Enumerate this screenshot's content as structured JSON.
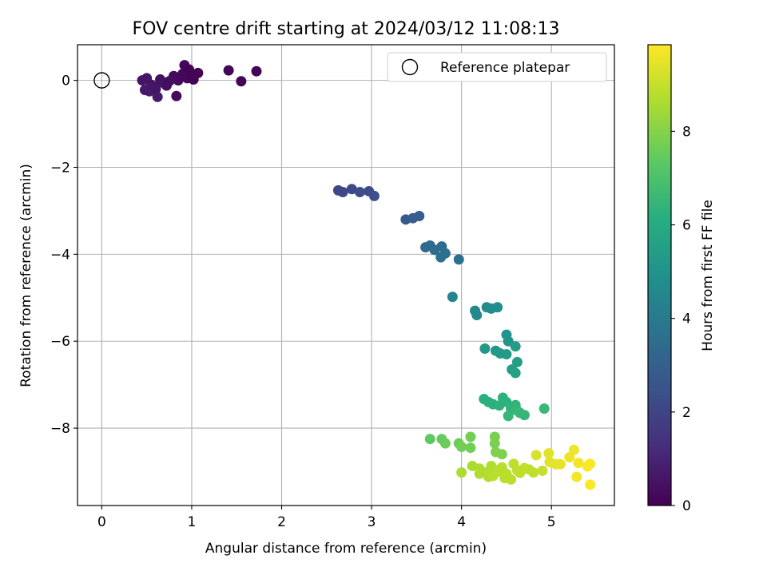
{
  "chart_data": {
    "type": "scatter",
    "title": "FOV centre drift starting at 2024/03/12 11:08:13",
    "xlabel": "Angular distance from reference (arcmin)",
    "ylabel": "Rotation from reference (arcmin)",
    "xlim": [
      -0.27,
      5.7
    ],
    "ylim": [
      -9.78,
      0.82
    ],
    "xticks": [
      0,
      1,
      2,
      3,
      4,
      5
    ],
    "yticks": [
      0,
      -2,
      -4,
      -6,
      -8
    ],
    "xtick_labels": [
      "0",
      "1",
      "2",
      "3",
      "4",
      "5"
    ],
    "ytick_labels": [
      "0",
      "−2",
      "−4",
      "−6",
      "−8"
    ],
    "grid": true,
    "legend": {
      "position": "upper-right",
      "entries": [
        "Reference platepar"
      ]
    },
    "reference_point": {
      "x": 0,
      "y": 0,
      "marker": "open-circle"
    },
    "colormap": "viridis",
    "colorbar": {
      "label": "Hours from first FF file",
      "min": 0,
      "max": 9.85,
      "ticks": [
        0,
        2,
        4,
        6,
        8
      ],
      "tick_labels": [
        "0",
        "2",
        "4",
        "6",
        "8"
      ]
    },
    "points": [
      {
        "x": 0.45,
        "y": 0.0,
        "h": 0.6
      },
      {
        "x": 0.5,
        "y": 0.05,
        "h": 0.6
      },
      {
        "x": 0.55,
        "y": -0.1,
        "h": 0.5
      },
      {
        "x": 0.6,
        "y": -0.2,
        "h": 0.5
      },
      {
        "x": 0.65,
        "y": 0.02,
        "h": 0.4
      },
      {
        "x": 0.68,
        "y": -0.05,
        "h": 0.5
      },
      {
        "x": 0.72,
        "y": -0.12,
        "h": 0.4
      },
      {
        "x": 0.8,
        "y": 0.1,
        "h": 0.3
      },
      {
        "x": 0.85,
        "y": 0.0,
        "h": 0.3
      },
      {
        "x": 0.9,
        "y": 0.15,
        "h": 0.2
      },
      {
        "x": 0.92,
        "y": 0.35,
        "h": 0.2
      },
      {
        "x": 0.95,
        "y": 0.05,
        "h": 0.2
      },
      {
        "x": 0.97,
        "y": 0.25,
        "h": 0.1
      },
      {
        "x": 1.0,
        "y": 0.12,
        "h": 0.1
      },
      {
        "x": 1.02,
        "y": 0.02,
        "h": 0.1
      },
      {
        "x": 1.07,
        "y": 0.17,
        "h": 0.1
      },
      {
        "x": 0.48,
        "y": -0.22,
        "h": 0.7
      },
      {
        "x": 0.53,
        "y": -0.25,
        "h": 0.7
      },
      {
        "x": 0.62,
        "y": -0.38,
        "h": 0.7
      },
      {
        "x": 0.75,
        "y": -0.02,
        "h": 0.4
      },
      {
        "x": 0.83,
        "y": -0.36,
        "h": 0.3
      },
      {
        "x": 0.58,
        "y": -0.15,
        "h": 0.6
      },
      {
        "x": 0.88,
        "y": 0.08,
        "h": 0.2
      },
      {
        "x": 1.41,
        "y": 0.23,
        "h": 0.1
      },
      {
        "x": 1.55,
        "y": -0.02,
        "h": 0.1
      },
      {
        "x": 1.72,
        "y": 0.21,
        "h": 0.1
      },
      {
        "x": 2.63,
        "y": -2.53,
        "h": 2.1
      },
      {
        "x": 2.68,
        "y": -2.57,
        "h": 2.1
      },
      {
        "x": 2.78,
        "y": -2.5,
        "h": 2.2
      },
      {
        "x": 2.87,
        "y": -2.57,
        "h": 2.3
      },
      {
        "x": 2.97,
        "y": -2.55,
        "h": 2.3
      },
      {
        "x": 3.03,
        "y": -2.66,
        "h": 2.4
      },
      {
        "x": 3.38,
        "y": -3.2,
        "h": 2.8
      },
      {
        "x": 3.46,
        "y": -3.17,
        "h": 2.9
      },
      {
        "x": 3.53,
        "y": -3.12,
        "h": 2.9
      },
      {
        "x": 3.6,
        "y": -3.84,
        "h": 3.4
      },
      {
        "x": 3.65,
        "y": -3.8,
        "h": 3.4
      },
      {
        "x": 3.7,
        "y": -3.9,
        "h": 3.5
      },
      {
        "x": 3.78,
        "y": -3.82,
        "h": 3.5
      },
      {
        "x": 3.77,
        "y": -4.07,
        "h": 3.6
      },
      {
        "x": 3.82,
        "y": -3.98,
        "h": 3.6
      },
      {
        "x": 3.97,
        "y": -4.12,
        "h": 3.6
      },
      {
        "x": 3.9,
        "y": -4.98,
        "h": 4.4
      },
      {
        "x": 4.15,
        "y": -5.3,
        "h": 4.6
      },
      {
        "x": 4.17,
        "y": -5.4,
        "h": 4.6
      },
      {
        "x": 4.28,
        "y": -5.22,
        "h": 4.7
      },
      {
        "x": 4.33,
        "y": -5.25,
        "h": 4.8
      },
      {
        "x": 4.4,
        "y": -5.22,
        "h": 4.8
      },
      {
        "x": 4.5,
        "y": -5.85,
        "h": 5.1
      },
      {
        "x": 4.52,
        "y": -6.0,
        "h": 5.1
      },
      {
        "x": 4.26,
        "y": -6.17,
        "h": 5.2
      },
      {
        "x": 4.38,
        "y": -6.22,
        "h": 5.2
      },
      {
        "x": 4.43,
        "y": -6.28,
        "h": 5.3
      },
      {
        "x": 4.5,
        "y": -6.3,
        "h": 5.3
      },
      {
        "x": 4.6,
        "y": -6.12,
        "h": 5.4
      },
      {
        "x": 4.62,
        "y": -6.48,
        "h": 5.5
      },
      {
        "x": 4.56,
        "y": -6.65,
        "h": 5.5
      },
      {
        "x": 4.6,
        "y": -6.73,
        "h": 5.6
      },
      {
        "x": 4.25,
        "y": -7.33,
        "h": 6.2
      },
      {
        "x": 4.3,
        "y": -7.4,
        "h": 6.2
      },
      {
        "x": 4.35,
        "y": -7.45,
        "h": 6.2
      },
      {
        "x": 4.42,
        "y": -7.48,
        "h": 6.3
      },
      {
        "x": 4.46,
        "y": -7.3,
        "h": 6.3
      },
      {
        "x": 4.5,
        "y": -7.4,
        "h": 6.3
      },
      {
        "x": 4.55,
        "y": -7.55,
        "h": 6.4
      },
      {
        "x": 4.6,
        "y": -7.47,
        "h": 6.4
      },
      {
        "x": 4.62,
        "y": -7.6,
        "h": 6.5
      },
      {
        "x": 4.65,
        "y": -7.65,
        "h": 6.5
      },
      {
        "x": 4.52,
        "y": -7.72,
        "h": 6.5
      },
      {
        "x": 4.7,
        "y": -7.7,
        "h": 6.5
      },
      {
        "x": 4.92,
        "y": -7.55,
        "h": 6.6
      },
      {
        "x": 3.65,
        "y": -8.25,
        "h": 7.4
      },
      {
        "x": 3.78,
        "y": -8.25,
        "h": 7.5
      },
      {
        "x": 3.82,
        "y": -8.35,
        "h": 7.6
      },
      {
        "x": 3.97,
        "y": -8.35,
        "h": 7.6
      },
      {
        "x": 4.0,
        "y": -8.43,
        "h": 7.7
      },
      {
        "x": 4.1,
        "y": -8.2,
        "h": 7.7
      },
      {
        "x": 4.1,
        "y": -8.45,
        "h": 7.7
      },
      {
        "x": 4.37,
        "y": -8.2,
        "h": 7.8
      },
      {
        "x": 4.37,
        "y": -8.35,
        "h": 7.8
      },
      {
        "x": 4.38,
        "y": -8.55,
        "h": 7.9
      },
      {
        "x": 4.45,
        "y": -8.6,
        "h": 7.9
      },
      {
        "x": 4.0,
        "y": -9.02,
        "h": 8.6
      },
      {
        "x": 4.12,
        "y": -8.87,
        "h": 8.6
      },
      {
        "x": 4.2,
        "y": -8.93,
        "h": 8.6
      },
      {
        "x": 4.27,
        "y": -9.02,
        "h": 8.7
      },
      {
        "x": 4.3,
        "y": -9.12,
        "h": 8.7
      },
      {
        "x": 4.33,
        "y": -8.87,
        "h": 8.7
      },
      {
        "x": 4.4,
        "y": -9.0,
        "h": 8.8
      },
      {
        "x": 4.45,
        "y": -8.9,
        "h": 8.8
      },
      {
        "x": 4.5,
        "y": -9.05,
        "h": 8.8
      },
      {
        "x": 4.55,
        "y": -9.18,
        "h": 8.8
      },
      {
        "x": 4.58,
        "y": -8.82,
        "h": 8.9
      },
      {
        "x": 4.62,
        "y": -8.97,
        "h": 8.9
      },
      {
        "x": 4.7,
        "y": -8.92,
        "h": 8.9
      },
      {
        "x": 4.8,
        "y": -9.02,
        "h": 8.9
      },
      {
        "x": 4.9,
        "y": -8.98,
        "h": 9.0
      },
      {
        "x": 4.2,
        "y": -9.05,
        "h": 8.7
      },
      {
        "x": 4.35,
        "y": -9.1,
        "h": 8.8
      },
      {
        "x": 4.48,
        "y": -9.15,
        "h": 8.8
      },
      {
        "x": 4.65,
        "y": -9.03,
        "h": 8.9
      },
      {
        "x": 4.75,
        "y": -8.95,
        "h": 8.9
      },
      {
        "x": 4.42,
        "y": -8.95,
        "h": 8.8
      },
      {
        "x": 4.83,
        "y": -8.62,
        "h": 9.3
      },
      {
        "x": 4.97,
        "y": -8.58,
        "h": 9.4
      },
      {
        "x": 4.98,
        "y": -8.78,
        "h": 9.4
      },
      {
        "x": 5.05,
        "y": -8.83,
        "h": 9.5
      },
      {
        "x": 5.1,
        "y": -8.83,
        "h": 9.5
      },
      {
        "x": 5.2,
        "y": -8.67,
        "h": 9.6
      },
      {
        "x": 5.25,
        "y": -8.5,
        "h": 9.6
      },
      {
        "x": 5.3,
        "y": -8.8,
        "h": 9.7
      },
      {
        "x": 5.28,
        "y": -9.12,
        "h": 9.7
      },
      {
        "x": 5.4,
        "y": -8.88,
        "h": 9.8
      },
      {
        "x": 5.43,
        "y": -8.82,
        "h": 9.8
      },
      {
        "x": 5.43,
        "y": -9.3,
        "h": 9.8
      }
    ]
  }
}
